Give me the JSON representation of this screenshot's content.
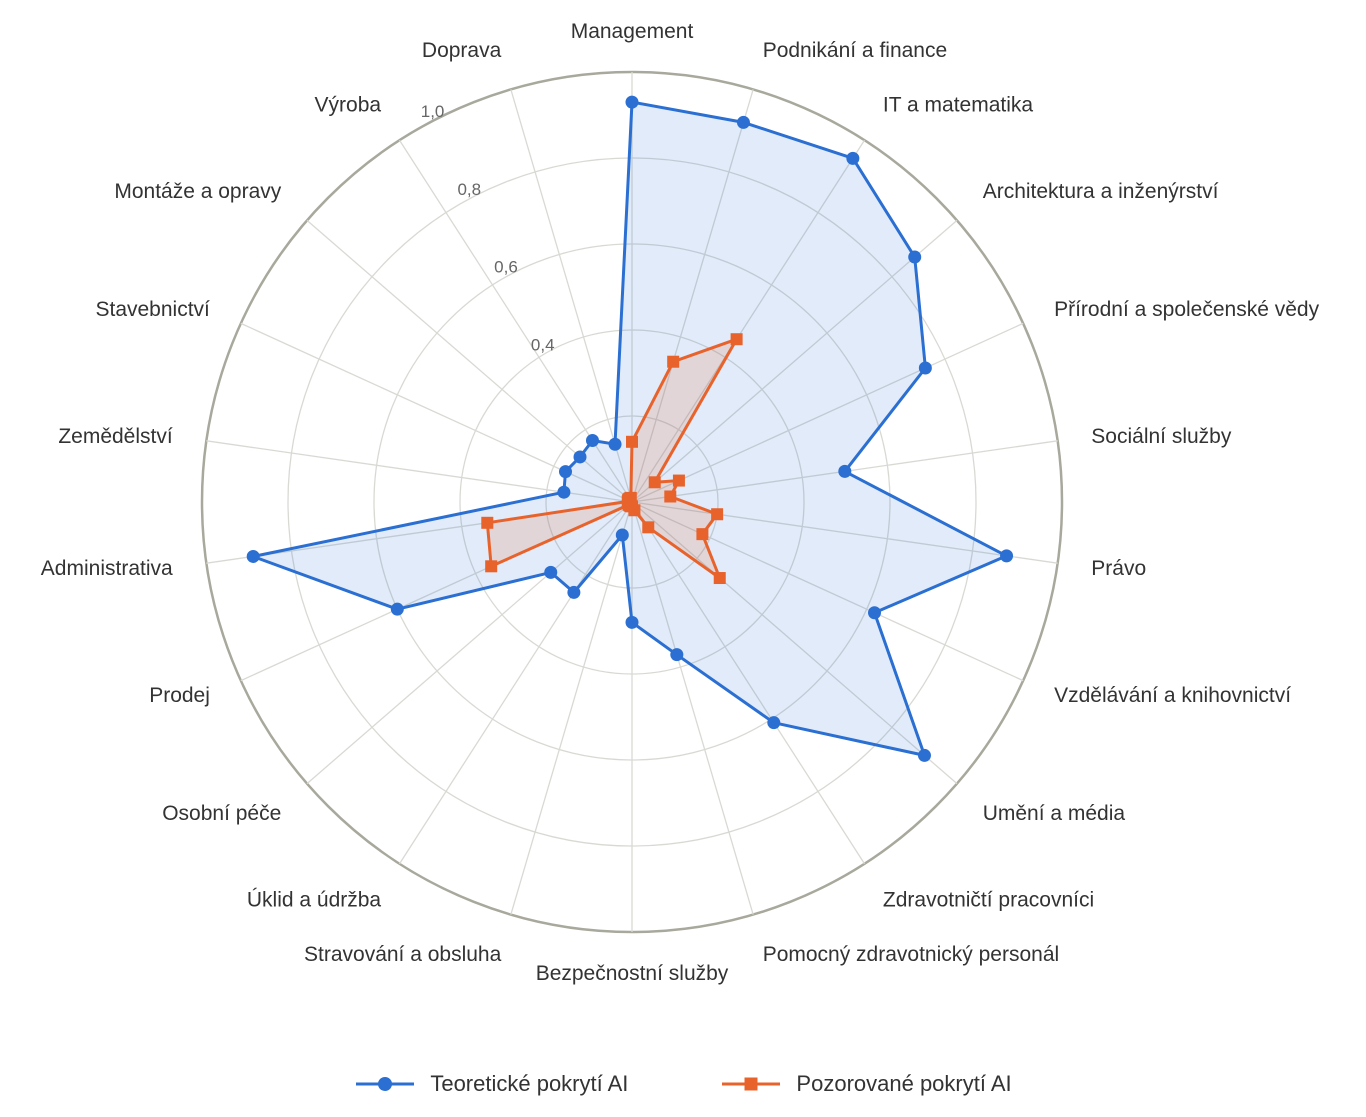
{
  "chart_data": {
    "type": "radar",
    "categories": [
      "Management",
      "Podnikání a finance",
      "IT a matematika",
      "Architektura a inženýrství",
      "Přírodní a společenské vědy",
      "Sociální služby",
      "Právo",
      "Vzdělávání a knihovnictví",
      "Umění a média",
      "Zdravotničtí pracovníci",
      "Pomocný zdravotnický personál",
      "Bezpečnostní služby",
      "Stravování a obsluha",
      "Úklid a údržba",
      "Osobní péče",
      "Prodej",
      "Administrativa",
      "Zemědělství",
      "Stavebnictví",
      "Montáže a opravy",
      "Výroba",
      "Doprava"
    ],
    "series": [
      {
        "name": "Teoretické pokrytí AI",
        "color": "#2a6fd1",
        "marker": "circle",
        "values": [
          0.93,
          0.92,
          0.95,
          0.87,
          0.75,
          0.5,
          0.88,
          0.62,
          0.9,
          0.61,
          0.37,
          0.28,
          0.08,
          0.25,
          0.25,
          0.6,
          0.89,
          0.16,
          0.17,
          0.16,
          0.17,
          0.14
        ]
      },
      {
        "name": "Pozorované pokrytí AI",
        "color": "#e8632c",
        "marker": "square",
        "values": [
          0.14,
          0.34,
          0.45,
          0.07,
          0.12,
          0.09,
          0.2,
          0.18,
          0.27,
          0.07,
          0.02,
          0.01,
          0.01,
          0.01,
          0.01,
          0.36,
          0.34,
          0.01,
          0.01,
          0.01,
          0.01,
          0.01
        ]
      }
    ],
    "rlim": [
      0,
      1.0
    ],
    "rticks": [
      0.4,
      0.6,
      0.8,
      1.0
    ],
    "rtick_labels": [
      "0,4",
      "0,6",
      "0,8",
      "1,0"
    ],
    "grid": true,
    "legend_position": "bottom-center"
  }
}
